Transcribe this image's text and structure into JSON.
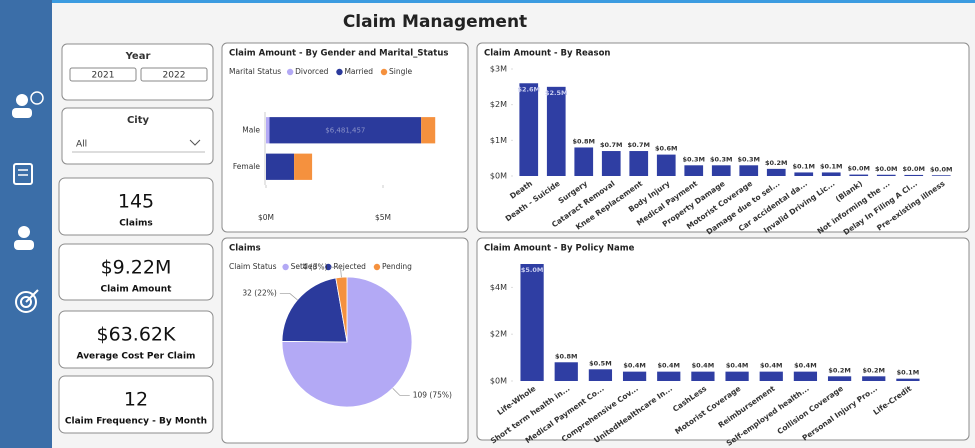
{
  "header": {
    "title": "Claim Management"
  },
  "slicers": {
    "year": {
      "label": "Year",
      "options": [
        "2021",
        "2022"
      ]
    },
    "city": {
      "label": "City",
      "selected": "All"
    }
  },
  "cards": [
    {
      "value": 145,
      "label": "Claims"
    },
    {
      "value": "$9.22M",
      "label": "Claim Amount"
    },
    {
      "value": "$63.62K",
      "label": "Average Cost Per Claim"
    },
    {
      "value": 12,
      "label": "Claim Frequency - By Month"
    }
  ],
  "chart_data": [
    {
      "type": "bar",
      "orientation": "horizontal",
      "stacked": true,
      "title": "Claim Amount - By Gender and Marital_Status",
      "legend_title": "Marital Status",
      "categories": [
        "Male",
        "Female"
      ],
      "series": [
        {
          "name": "Divorced",
          "color": "#b3a9f5",
          "values": [
            150000,
            0
          ]
        },
        {
          "name": "Married",
          "color": "#2b3a9c",
          "values": [
            6481457,
            1200000
          ],
          "value_labels": [
            "$6,481,457",
            null
          ]
        },
        {
          "name": "Single",
          "color": "#f5913e",
          "values": [
            600000,
            770000
          ]
        }
      ],
      "xlim": [
        0,
        7500000
      ],
      "xticks": [
        {
          "value": 0,
          "label": "$0M"
        },
        {
          "value": 5000000,
          "label": "$5M"
        }
      ]
    },
    {
      "type": "bar",
      "title": "Claim Amount - By Reason",
      "color": "#2f3ea3",
      "categories": [
        "Death",
        "Death - Suicide",
        "Surgery",
        "Cataract Removal",
        "Knee Replacement",
        "Body Injury",
        "Medical Payment",
        "Property Damage",
        "Motorist Coverage",
        "Damage due to sel...",
        "Car accidental da...",
        "Invalid Driving Lic...",
        "(Blank)",
        "Not informing the ...",
        "Delay In Filing A Cl...",
        "Pre-existing illness"
      ],
      "values": [
        2600000,
        2500000,
        800000,
        700000,
        700000,
        600000,
        300000,
        300000,
        300000,
        200000,
        100000,
        100000,
        40000,
        35000,
        30000,
        20000
      ],
      "value_labels": [
        "$2.6M",
        "$2.5M",
        "$0.8M",
        "$0.7M",
        "$0.7M",
        "$0.6M",
        "$0.3M",
        "$0.3M",
        "$0.3M",
        "$0.2M",
        "$0.1M",
        "$0.1M",
        "$0.0M",
        "$0.0M",
        "$0.0M",
        "$0.0M"
      ],
      "ylim": [
        0,
        3000000
      ],
      "yticks": [
        {
          "value": 0,
          "label": "$0M"
        },
        {
          "value": 1000000,
          "label": "$1M"
        },
        {
          "value": 2000000,
          "label": "$2M"
        },
        {
          "value": 3000000,
          "label": "$3M"
        }
      ]
    },
    {
      "type": "pie",
      "title": "Claims",
      "legend_title": "Claim Status",
      "categories": [
        "Settled",
        "Rejected",
        "Pending"
      ],
      "values": [
        109,
        32,
        4
      ],
      "value_labels": [
        "109 (75%)",
        "32 (22%)",
        "4 (3%)"
      ],
      "colors": [
        "#b3a9f5",
        "#2b3a9c",
        "#f5913e"
      ]
    },
    {
      "type": "bar",
      "title": "Claim Amount - By Policy Name",
      "color": "#2f3ea3",
      "categories": [
        "Life-Whole",
        "Short term health in...",
        "Medical Payment Co...",
        "Comprehensive Cov...",
        "UnitedHealthcare In...",
        "CashLess",
        "Motorist Coverage",
        "Reimbursement",
        "Self-employed health...",
        "Collision Coverage",
        "Personal Injury Pro...",
        "Life-Credit"
      ],
      "values": [
        5000000,
        800000,
        500000,
        400000,
        400000,
        400000,
        400000,
        400000,
        400000,
        200000,
        200000,
        100000
      ],
      "value_labels": [
        "$5.0M",
        "$0.8M",
        "$0.5M",
        "$0.4M",
        "$0.4M",
        "$0.4M",
        "$0.4M",
        "$0.4M",
        "$0.4M",
        "$0.2M",
        "$0.2M",
        "$0.1M"
      ],
      "ylim": [
        0,
        5000000
      ],
      "yticks": [
        {
          "value": 0,
          "label": "$0M"
        },
        {
          "value": 2000000,
          "label": "$2M"
        },
        {
          "value": 4000000,
          "label": "$4M"
        }
      ]
    }
  ]
}
